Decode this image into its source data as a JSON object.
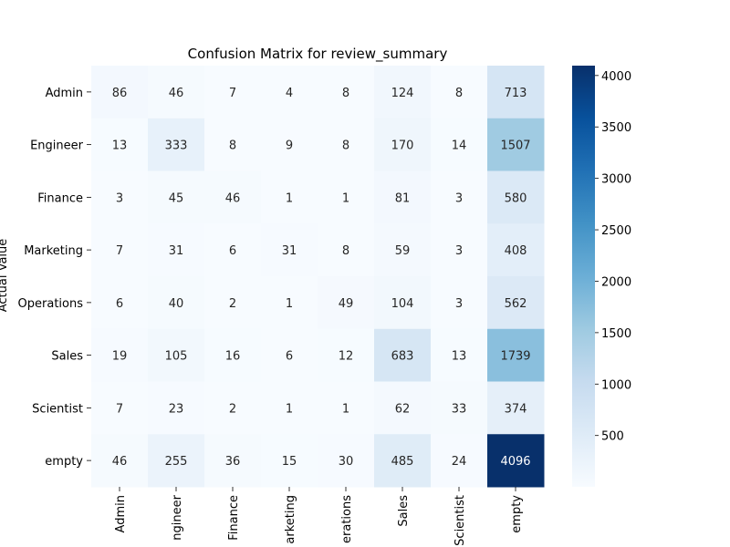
{
  "chart_data": {
    "type": "heatmap",
    "title": "Confusion Matrix for review_summary",
    "xlabel": "",
    "ylabel": "Actual Value",
    "x_labels": [
      "Admin",
      "Engineer",
      "Finance",
      "Marketing",
      "Operations",
      "Sales",
      "Scientist",
      "empty"
    ],
    "y_labels": [
      "Admin",
      "Engineer",
      "Finance",
      "Marketing",
      "Operations",
      "Sales",
      "Scientist",
      "empty"
    ],
    "x_tick_text": [
      "Admin",
      "ngineer",
      "Finance",
      "arketing",
      "erations",
      "Sales",
      "Scientist",
      "empty"
    ],
    "values": [
      [
        86,
        46,
        7,
        4,
        8,
        124,
        8,
        713
      ],
      [
        13,
        333,
        8,
        9,
        8,
        170,
        14,
        1507
      ],
      [
        3,
        45,
        46,
        1,
        1,
        81,
        3,
        580
      ],
      [
        7,
        31,
        6,
        31,
        8,
        59,
        3,
        408
      ],
      [
        6,
        40,
        2,
        1,
        49,
        104,
        3,
        562
      ],
      [
        19,
        105,
        16,
        6,
        12,
        683,
        13,
        1739
      ],
      [
        7,
        23,
        2,
        1,
        1,
        62,
        33,
        374
      ],
      [
        46,
        255,
        36,
        15,
        30,
        485,
        24,
        4096
      ]
    ],
    "vmin": 1,
    "vmax": 4096,
    "colormap": "Blues",
    "colorbar_ticks": [
      500,
      1000,
      1500,
      2000,
      2500,
      3000,
      3500,
      4000
    ],
    "annotations": true,
    "grid": false
  }
}
